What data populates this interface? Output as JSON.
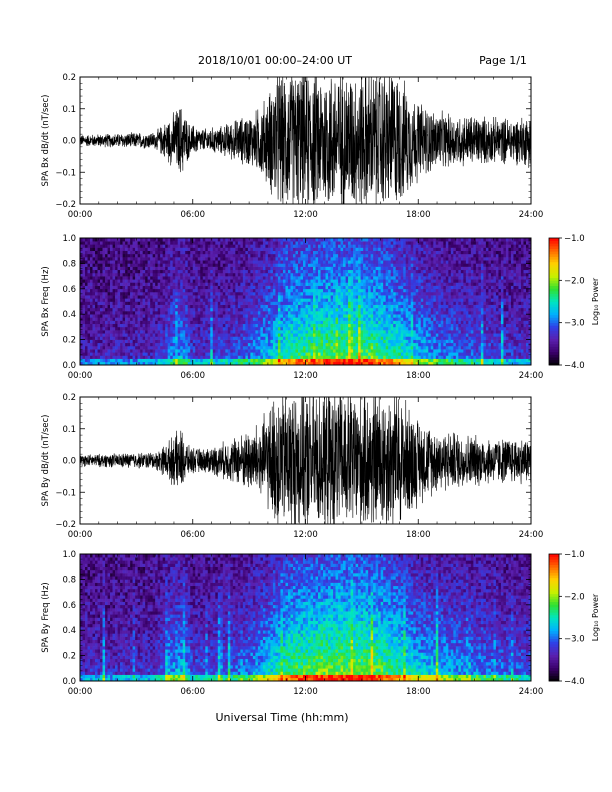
{
  "header": {
    "title": "2018/10/01   00:00–24:00 UT",
    "page": "Page 1/1"
  },
  "footer": {
    "xlabel": "Universal Time (hh:mm)"
  },
  "colors": {
    "trace": "#000000",
    "spectrogram_scale": [
      "#000000",
      "#3a006a",
      "#5a1fae",
      "#2f3fe6",
      "#00b0ff",
      "#00e6c0",
      "#30e030",
      "#c8f000",
      "#ffd000",
      "#ff6a00",
      "#ff0000"
    ]
  },
  "chart_data": [
    {
      "type": "line",
      "id": "bx-dbdt",
      "ylabel": "SPA Bx dB/dt (nT/sec)",
      "xlim": [
        0,
        24
      ],
      "ylim": [
        -0.2,
        0.2
      ],
      "x_ticks": [
        "00:00",
        "06:00",
        "12:00",
        "18:00",
        "24:00"
      ],
      "y_ticks": [
        "0.2",
        "0.1",
        "0.0",
        "−0.1",
        "−0.2"
      ],
      "y_tick_values": [
        0.2,
        0.1,
        0.0,
        -0.1,
        -0.2
      ],
      "envelope": {
        "x_hours": [
          0,
          2,
          4,
          4.6,
          5.0,
          5.4,
          5.8,
          6.5,
          7.5,
          8.5,
          9.3,
          10.0,
          10.5,
          11.0,
          12.0,
          13.0,
          14.0,
          15.0,
          16.0,
          16.8,
          17.5,
          18.0,
          19.0,
          20.0,
          21.0,
          22.0,
          23.0,
          23.9,
          24.0
        ],
        "amplitude_nT_per_s": [
          0.02,
          0.025,
          0.03,
          0.07,
          0.1,
          0.13,
          0.06,
          0.04,
          0.05,
          0.08,
          0.1,
          0.16,
          0.25,
          0.25,
          0.25,
          0.25,
          0.25,
          0.25,
          0.25,
          0.25,
          0.18,
          0.14,
          0.1,
          0.09,
          0.09,
          0.08,
          0.08,
          0.09,
          0.2
        ]
      }
    },
    {
      "type": "heatmap",
      "id": "bx-spectrogram",
      "ylabel": "SPA Bx Freq (Hz)",
      "xlim": [
        0,
        24
      ],
      "ylim": [
        0,
        1.0
      ],
      "x_ticks": [
        "00:00",
        "06:00",
        "12:00",
        "18:00",
        "24:00"
      ],
      "y_ticks": [
        "1.0",
        "0.8",
        "0.6",
        "0.4",
        "0.2",
        "0.0"
      ],
      "y_tick_values": [
        1.0,
        0.8,
        0.6,
        0.4,
        0.2,
        0.0
      ],
      "colorbar": {
        "label": "Log₁₀ Power",
        "range": [
          -4.0,
          -1.0
        ],
        "ticks": [
          "−1.0",
          "−2.0",
          "−3.0",
          "−4.0"
        ],
        "tick_values": [
          -1.0,
          -2.0,
          -3.0,
          -4.0
        ]
      },
      "activity_profile": {
        "x_hours": [
          0,
          4,
          5,
          5.5,
          6,
          8,
          9,
          10,
          11,
          12,
          13,
          14,
          15,
          16,
          17,
          18,
          19,
          20,
          21,
          22,
          23,
          24
        ],
        "level": [
          0.15,
          0.2,
          0.45,
          0.5,
          0.25,
          0.3,
          0.4,
          0.55,
          0.75,
          0.8,
          0.85,
          0.85,
          0.85,
          0.8,
          0.7,
          0.55,
          0.45,
          0.4,
          0.35,
          0.3,
          0.25,
          0.25
        ]
      }
    },
    {
      "type": "line",
      "id": "by-dbdt",
      "ylabel": "SPA By dB/dt (nT/sec)",
      "xlim": [
        0,
        24
      ],
      "ylim": [
        -0.2,
        0.2
      ],
      "x_ticks": [
        "00:00",
        "06:00",
        "12:00",
        "18:00",
        "24:00"
      ],
      "y_ticks": [
        "0.2",
        "0.1",
        "0.0",
        "−0.1",
        "−0.2"
      ],
      "y_tick_values": [
        0.2,
        0.1,
        0.0,
        -0.1,
        -0.2
      ],
      "envelope": {
        "x_hours": [
          0,
          2,
          4,
          4.6,
          5.0,
          5.4,
          5.8,
          6.5,
          7.5,
          8.5,
          9.3,
          10.0,
          10.5,
          11.0,
          12.0,
          13.0,
          14.0,
          15.0,
          16.0,
          16.8,
          17.5,
          18.0,
          19.0,
          20.0,
          21.0,
          22.0,
          23.0,
          23.9,
          24.0
        ],
        "amplitude_nT_per_s": [
          0.02,
          0.025,
          0.03,
          0.06,
          0.09,
          0.11,
          0.05,
          0.04,
          0.06,
          0.09,
          0.12,
          0.17,
          0.25,
          0.25,
          0.25,
          0.25,
          0.25,
          0.25,
          0.25,
          0.25,
          0.2,
          0.15,
          0.11,
          0.1,
          0.09,
          0.08,
          0.08,
          0.08,
          0.12
        ]
      }
    },
    {
      "type": "heatmap",
      "id": "by-spectrogram",
      "ylabel": "SPA By Freq (Hz)",
      "xlim": [
        0,
        24
      ],
      "ylim": [
        0,
        1.0
      ],
      "x_ticks": [
        "00:00",
        "06:00",
        "12:00",
        "18:00",
        "24:00"
      ],
      "y_ticks": [
        "1.0",
        "0.8",
        "0.6",
        "0.4",
        "0.2",
        "0.0"
      ],
      "y_tick_values": [
        1.0,
        0.8,
        0.6,
        0.4,
        0.2,
        0.0
      ],
      "colorbar": {
        "label": "Log₁₀ Power",
        "range": [
          -4.0,
          -1.0
        ],
        "ticks": [
          "−1.0",
          "−2.0",
          "−3.0",
          "−4.0"
        ],
        "tick_values": [
          -1.0,
          -2.0,
          -3.0,
          -4.0
        ]
      },
      "activity_profile": {
        "x_hours": [
          0,
          4,
          5,
          5.5,
          6,
          8,
          9,
          10,
          11,
          12,
          13,
          14,
          15,
          16,
          17,
          18,
          19,
          20,
          21,
          22,
          23,
          24
        ],
        "level": [
          0.2,
          0.25,
          0.5,
          0.55,
          0.3,
          0.35,
          0.45,
          0.6,
          0.8,
          0.85,
          0.9,
          0.9,
          0.9,
          0.85,
          0.75,
          0.6,
          0.55,
          0.5,
          0.45,
          0.4,
          0.35,
          0.35
        ]
      }
    }
  ]
}
